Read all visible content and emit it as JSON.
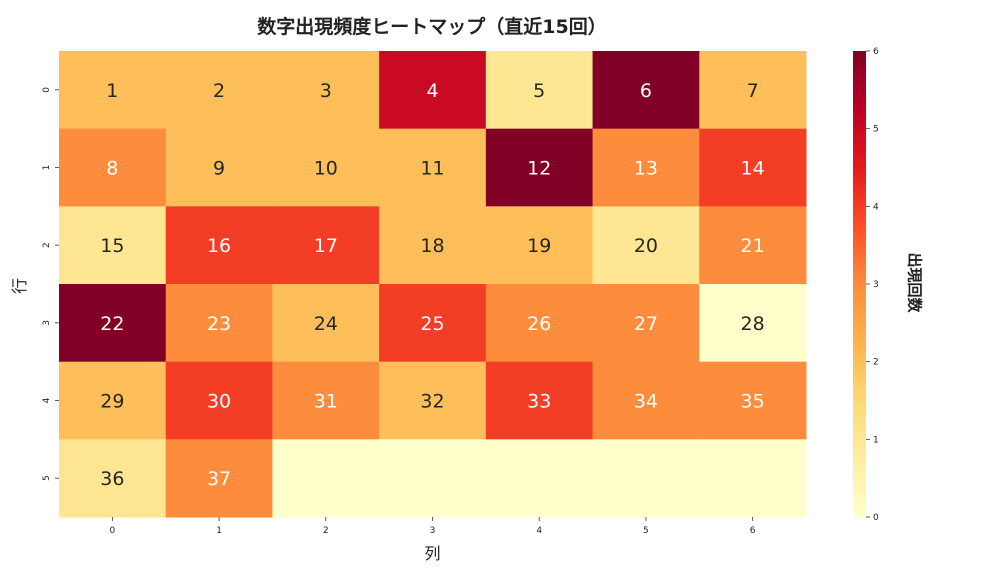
{
  "chart_data": {
    "type": "heatmap",
    "title": "数字出現頻度ヒートマップ（直近15回）",
    "xlabel": "列",
    "ylabel": "行",
    "x_ticks": [
      "0",
      "1",
      "2",
      "3",
      "4",
      "5",
      "6"
    ],
    "y_ticks": [
      "0",
      "1",
      "2",
      "3",
      "4",
      "5"
    ],
    "annotations": [
      [
        "1",
        "2",
        "3",
        "4",
        "5",
        "6",
        "7"
      ],
      [
        "8",
        "9",
        "10",
        "11",
        "12",
        "13",
        "14"
      ],
      [
        "15",
        "16",
        "17",
        "18",
        "19",
        "20",
        "21"
      ],
      [
        "22",
        "23",
        "24",
        "25",
        "26",
        "27",
        "28"
      ],
      [
        "29",
        "30",
        "31",
        "32",
        "33",
        "34",
        "35"
      ],
      [
        "36",
        "37",
        "",
        "",
        "",
        "",
        ""
      ]
    ],
    "values": [
      [
        2,
        2,
        2,
        5,
        1,
        6,
        2
      ],
      [
        3,
        2,
        2,
        2,
        6,
        3,
        4
      ],
      [
        1,
        4,
        4,
        2,
        2,
        1,
        3
      ],
      [
        6,
        3,
        2,
        4,
        3,
        3,
        0
      ],
      [
        2,
        4,
        3,
        2,
        4,
        3,
        3
      ],
      [
        1,
        3,
        0,
        0,
        0,
        0,
        0
      ]
    ],
    "colormap": "YlOrRd",
    "colormap_stops": [
      "#ffffcc",
      "#ffeda0",
      "#fed976",
      "#feb24c",
      "#fd8d3c",
      "#fc4e2a",
      "#e31a1c",
      "#bd0026",
      "#800026"
    ],
    "vmin": 0,
    "vmax": 6,
    "colorbar": {
      "label": "出現回数",
      "ticks": [
        "0",
        "1",
        "2",
        "3",
        "4",
        "5",
        "6"
      ]
    },
    "grid": false
  }
}
